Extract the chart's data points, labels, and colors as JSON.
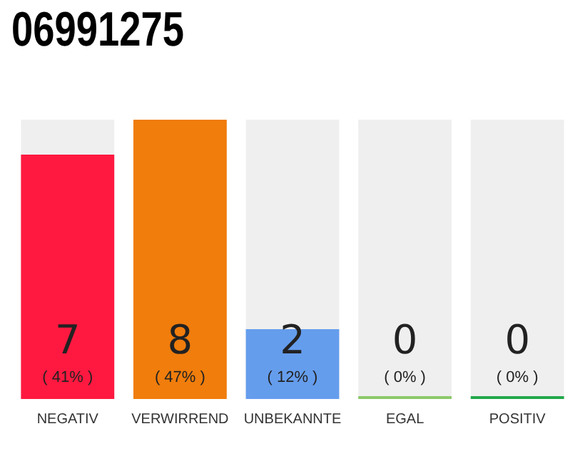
{
  "chart_data": {
    "type": "bar",
    "title": "06991275",
    "categories": [
      "NEGATIV",
      "VERWIRREND",
      "UNBEKANNTE",
      "EGAL",
      "POSITIV"
    ],
    "values": [
      7,
      8,
      2,
      0,
      0
    ],
    "colors": [
      "#ff1940",
      "#f07d0c",
      "#659ded",
      "#8bc96a",
      "#22a84a"
    ],
    "tick_labels": "x",
    "grid": false,
    "legend": false,
    "data_labels": true,
    "annotations": [
      "( 41% )",
      "( 47% )",
      "( 12% )",
      "( 0% )",
      "( 0% )"
    ]
  }
}
